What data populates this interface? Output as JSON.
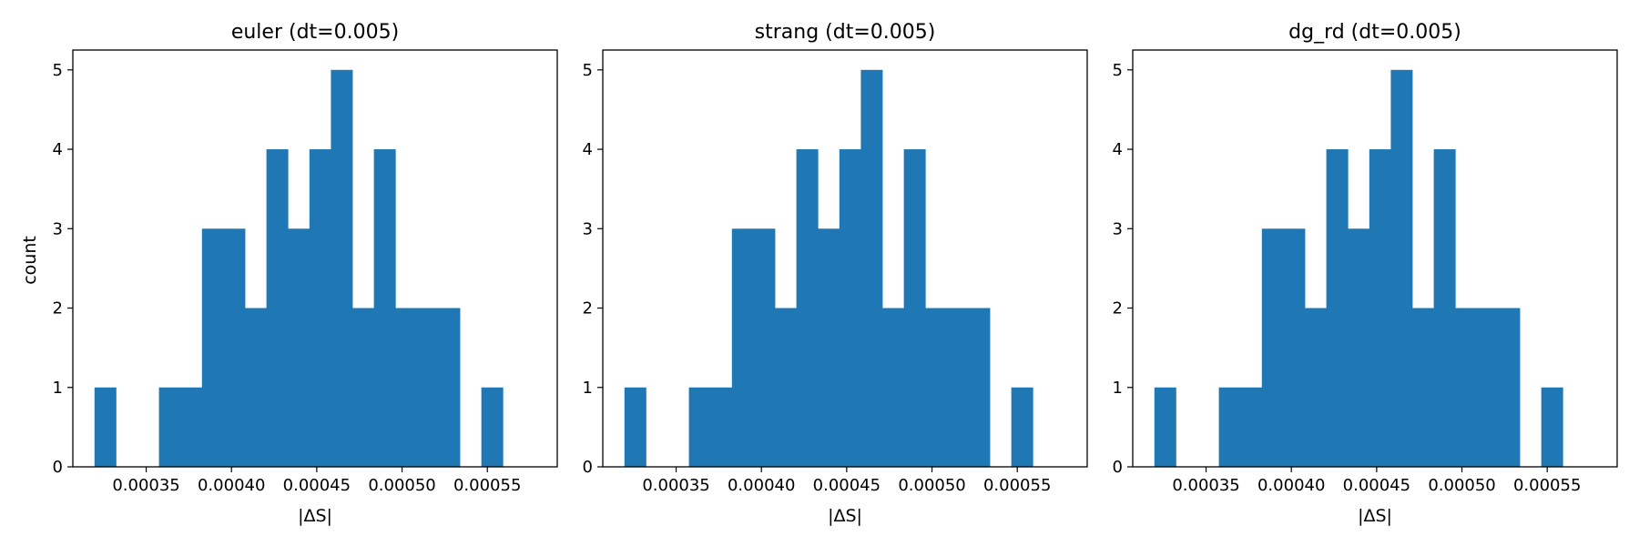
{
  "figure": {
    "background": "#ffffff",
    "bar_color": "#1f77b4"
  },
  "chart_data": [
    {
      "type": "bar",
      "subtype": "histogram",
      "title": "euler (dt=0.005)",
      "xlabel": "|ΔS|",
      "ylabel": "count",
      "xlim": [
        0.000307,
        0.000591
      ],
      "ylim": [
        0,
        5.25
      ],
      "bin_edges": [
        0.0003197,
        0.0003323,
        0.0003449,
        0.0003575,
        0.0003701,
        0.0003827,
        0.0003953,
        0.0004079,
        0.0004205,
        0.0004331,
        0.0004457,
        0.0004583,
        0.0004709,
        0.0004835,
        0.0004961,
        0.0005087,
        0.0005213,
        0.0005339,
        0.0005465,
        0.0005591,
        0.0005717,
        0.0005843
      ],
      "values": [
        1,
        0,
        0,
        1,
        1,
        3,
        3,
        2,
        4,
        3,
        4,
        5,
        2,
        4,
        2,
        2,
        2,
        0,
        1,
        0,
        0
      ],
      "x_ticks": [
        0.00035,
        0.0004,
        0.00045,
        0.0005,
        0.00055
      ],
      "x_tick_labels": [
        "0.00035",
        "0.00040",
        "0.00045",
        "0.00050",
        "0.00055"
      ],
      "y_ticks": [
        0,
        1,
        2,
        3,
        4,
        5
      ],
      "y_tick_labels": [
        "0",
        "1",
        "2",
        "3",
        "4",
        "5"
      ],
      "grid": false
    },
    {
      "type": "bar",
      "subtype": "histogram",
      "title": "strang (dt=0.005)",
      "xlabel": "|ΔS|",
      "ylabel": "",
      "xlim": [
        0.000307,
        0.000591
      ],
      "ylim": [
        0,
        5.25
      ],
      "bin_edges": [
        0.0003197,
        0.0003323,
        0.0003449,
        0.0003575,
        0.0003701,
        0.0003827,
        0.0003953,
        0.0004079,
        0.0004205,
        0.0004331,
        0.0004457,
        0.0004583,
        0.0004709,
        0.0004835,
        0.0004961,
        0.0005087,
        0.0005213,
        0.0005339,
        0.0005465,
        0.0005591,
        0.0005717,
        0.0005843
      ],
      "values": [
        1,
        0,
        0,
        1,
        1,
        3,
        3,
        2,
        4,
        3,
        4,
        5,
        2,
        4,
        2,
        2,
        2,
        0,
        1,
        0,
        0
      ],
      "x_ticks": [
        0.00035,
        0.0004,
        0.00045,
        0.0005,
        0.00055
      ],
      "x_tick_labels": [
        "0.00035",
        "0.00040",
        "0.00045",
        "0.00050",
        "0.00055"
      ],
      "y_ticks": [
        0,
        1,
        2,
        3,
        4,
        5
      ],
      "y_tick_labels": [
        "0",
        "1",
        "2",
        "3",
        "4",
        "5"
      ],
      "grid": false
    },
    {
      "type": "bar",
      "subtype": "histogram",
      "title": "dg_rd (dt=0.005)",
      "xlabel": "|ΔS|",
      "ylabel": "",
      "xlim": [
        0.000307,
        0.000591
      ],
      "ylim": [
        0,
        5.25
      ],
      "bin_edges": [
        0.0003197,
        0.0003323,
        0.0003449,
        0.0003575,
        0.0003701,
        0.0003827,
        0.0003953,
        0.0004079,
        0.0004205,
        0.0004331,
        0.0004457,
        0.0004583,
        0.0004709,
        0.0004835,
        0.0004961,
        0.0005087,
        0.0005213,
        0.0005339,
        0.0005465,
        0.0005591,
        0.0005717,
        0.0005843
      ],
      "values": [
        1,
        0,
        0,
        1,
        1,
        3,
        3,
        2,
        4,
        3,
        4,
        5,
        2,
        4,
        2,
        2,
        2,
        0,
        1,
        0,
        0
      ],
      "x_ticks": [
        0.00035,
        0.0004,
        0.00045,
        0.0005,
        0.00055
      ],
      "x_tick_labels": [
        "0.00035",
        "0.00040",
        "0.00045",
        "0.00050",
        "0.00055"
      ],
      "y_ticks": [
        0,
        1,
        2,
        3,
        4,
        5
      ],
      "y_tick_labels": [
        "0",
        "1",
        "2",
        "3",
        "4",
        "5"
      ],
      "grid": false
    }
  ]
}
